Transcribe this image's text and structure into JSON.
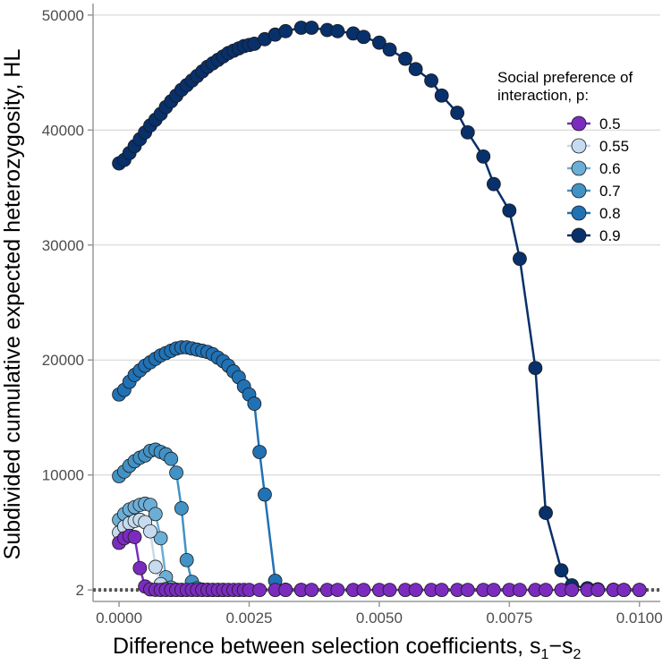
{
  "chart_data": {
    "type": "line",
    "xlabel": "Difference between selection coefficients, s",
    "xlabel_sub1": "1",
    "xlabel_minus": "−s",
    "xlabel_sub2": "2",
    "ylabel": "Subdivided cumulative expected heterozygosity, HL",
    "xlim": [
      -0.0005,
      0.0104
    ],
    "ylim": [
      -1000,
      51000
    ],
    "x_ticks": [
      0,
      0.0025,
      0.005,
      0.0075,
      0.01
    ],
    "x_tick_labels": [
      "0.0000",
      "0.0025",
      "0.0050",
      "0.0075",
      "0.0100"
    ],
    "y_ticks": [
      2,
      10000,
      20000,
      30000,
      40000,
      50000
    ],
    "y_tick_labels": [
      "2",
      "10000",
      "20000",
      "30000",
      "40000",
      "50000"
    ],
    "reference_line": {
      "y": 2,
      "style": "dotted"
    },
    "legend": {
      "title_line1": "Social preference of",
      "title_line2": "interaction, p:",
      "position": "top-right"
    },
    "series": [
      {
        "name": "0.9",
        "color": "#08306b",
        "x": [
          0,
          0.0001,
          0.0002,
          0.0003,
          0.0004,
          0.0005,
          0.0006,
          0.0007,
          0.0008,
          0.0009,
          0.001,
          0.0011,
          0.0012,
          0.0013,
          0.0014,
          0.0015,
          0.0016,
          0.0017,
          0.0018,
          0.0019,
          0.002,
          0.0021,
          0.0022,
          0.0023,
          0.0024,
          0.0025,
          0.0026,
          0.0028,
          0.003,
          0.0032,
          0.0035,
          0.0037,
          0.004,
          0.0042,
          0.0045,
          0.0047,
          0.005,
          0.0052,
          0.0055,
          0.0057,
          0.006,
          0.0062,
          0.0065,
          0.0067,
          0.007,
          0.0072,
          0.0075,
          0.0077,
          0.008,
          0.0082,
          0.0085,
          0.0087,
          0.009,
          0.0092,
          0.0095,
          0.0097,
          0.01
        ],
        "y": [
          37100,
          37400,
          38000,
          38600,
          39200,
          39800,
          40400,
          40900,
          41400,
          42000,
          42500,
          43000,
          43500,
          43900,
          44300,
          44700,
          45100,
          45500,
          45800,
          46100,
          46400,
          46700,
          46900,
          47100,
          47300,
          47400,
          47500,
          47900,
          48300,
          48600,
          48900,
          48900,
          48700,
          48600,
          48400,
          48100,
          47600,
          47000,
          46200,
          45300,
          44300,
          43000,
          41500,
          39800,
          37700,
          35300,
          33000,
          28800,
          19300,
          6700,
          1700,
          400,
          150,
          60,
          20,
          5,
          2
        ]
      },
      {
        "name": "0.8",
        "color": "#2171b5",
        "x": [
          0,
          0.0001,
          0.0002,
          0.0003,
          0.0004,
          0.0005,
          0.0006,
          0.0007,
          0.0008,
          0.0009,
          0.001,
          0.0011,
          0.0012,
          0.0013,
          0.0014,
          0.0015,
          0.0016,
          0.0017,
          0.0018,
          0.0019,
          0.002,
          0.0021,
          0.0022,
          0.0023,
          0.0024,
          0.0025,
          0.0026,
          0.0027,
          0.0028,
          0.003,
          0.0032,
          0.0035
        ],
        "y": [
          17000,
          17400,
          18100,
          18700,
          19100,
          19500,
          19800,
          20100,
          20400,
          20600,
          20800,
          21000,
          21100,
          21100,
          21000,
          20900,
          20800,
          20700,
          20500,
          20200,
          19900,
          19500,
          19000,
          18500,
          17700,
          17000,
          16200,
          12000,
          8300,
          800,
          20,
          2
        ]
      },
      {
        "name": "0.7",
        "color": "#4292c6",
        "x": [
          0,
          0.0001,
          0.0002,
          0.0003,
          0.0004,
          0.0005,
          0.0006,
          0.0007,
          0.0008,
          0.0009,
          0.001,
          0.0011,
          0.0012,
          0.0013,
          0.0014,
          0.0015,
          0.0016,
          0.0017,
          0.0018,
          0.0019,
          0.002
        ],
        "y": [
          9900,
          10300,
          10800,
          11200,
          11500,
          11700,
          12100,
          12200,
          12000,
          11800,
          11400,
          10200,
          7100,
          2600,
          700,
          150,
          30,
          8,
          3,
          2,
          2
        ]
      },
      {
        "name": "0.6",
        "color": "#6baed6",
        "x": [
          0,
          0.0001,
          0.0002,
          0.0003,
          0.0004,
          0.0005,
          0.0006,
          0.0007,
          0.0008,
          0.0009,
          0.001,
          0.0011,
          0.0012
        ],
        "y": [
          6100,
          6600,
          7000,
          7200,
          7400,
          7500,
          7400,
          6600,
          4500,
          1100,
          200,
          20,
          2
        ]
      },
      {
        "name": "0.55",
        "color": "#c6dbef",
        "x": [
          0,
          0.0001,
          0.0002,
          0.0003,
          0.0004,
          0.0005,
          0.0006,
          0.0007,
          0.0008,
          0.0009,
          0.001
        ],
        "y": [
          5000,
          5500,
          5800,
          6000,
          6100,
          5900,
          5100,
          2000,
          500,
          80,
          5
        ]
      },
      {
        "name": "0.5",
        "color": "#7b2cbf",
        "x": [
          0,
          0.0001,
          0.0002,
          0.0003,
          0.0004,
          0.0005,
          0.0006,
          0.0007,
          0.0008,
          0.0009,
          0.001,
          0.0011,
          0.0012,
          0.0013,
          0.0014,
          0.0015,
          0.0016,
          0.0017,
          0.0018,
          0.0019,
          0.002,
          0.0021,
          0.0022,
          0.0023,
          0.0024,
          0.0025,
          0.0027,
          0.003,
          0.0032,
          0.0035,
          0.0037,
          0.004,
          0.0042,
          0.0045,
          0.0047,
          0.005,
          0.0052,
          0.0055,
          0.0057,
          0.006,
          0.0062,
          0.0065,
          0.0067,
          0.007,
          0.0072,
          0.0075,
          0.0077,
          0.008,
          0.0082,
          0.0085,
          0.0087,
          0.009,
          0.0092,
          0.0095,
          0.0097,
          0.01
        ],
        "y": [
          4100,
          4500,
          4700,
          4600,
          1900,
          300,
          50,
          10,
          2,
          2,
          2,
          2,
          2,
          2,
          2,
          2,
          2,
          2,
          2,
          2,
          2,
          2,
          2,
          2,
          2,
          2,
          2,
          2,
          2,
          2,
          2,
          2,
          2,
          2,
          2,
          2,
          2,
          2,
          2,
          2,
          2,
          2,
          2,
          2,
          2,
          2,
          2,
          2,
          2,
          2,
          2,
          2,
          2,
          2,
          2,
          2
        ]
      }
    ]
  }
}
